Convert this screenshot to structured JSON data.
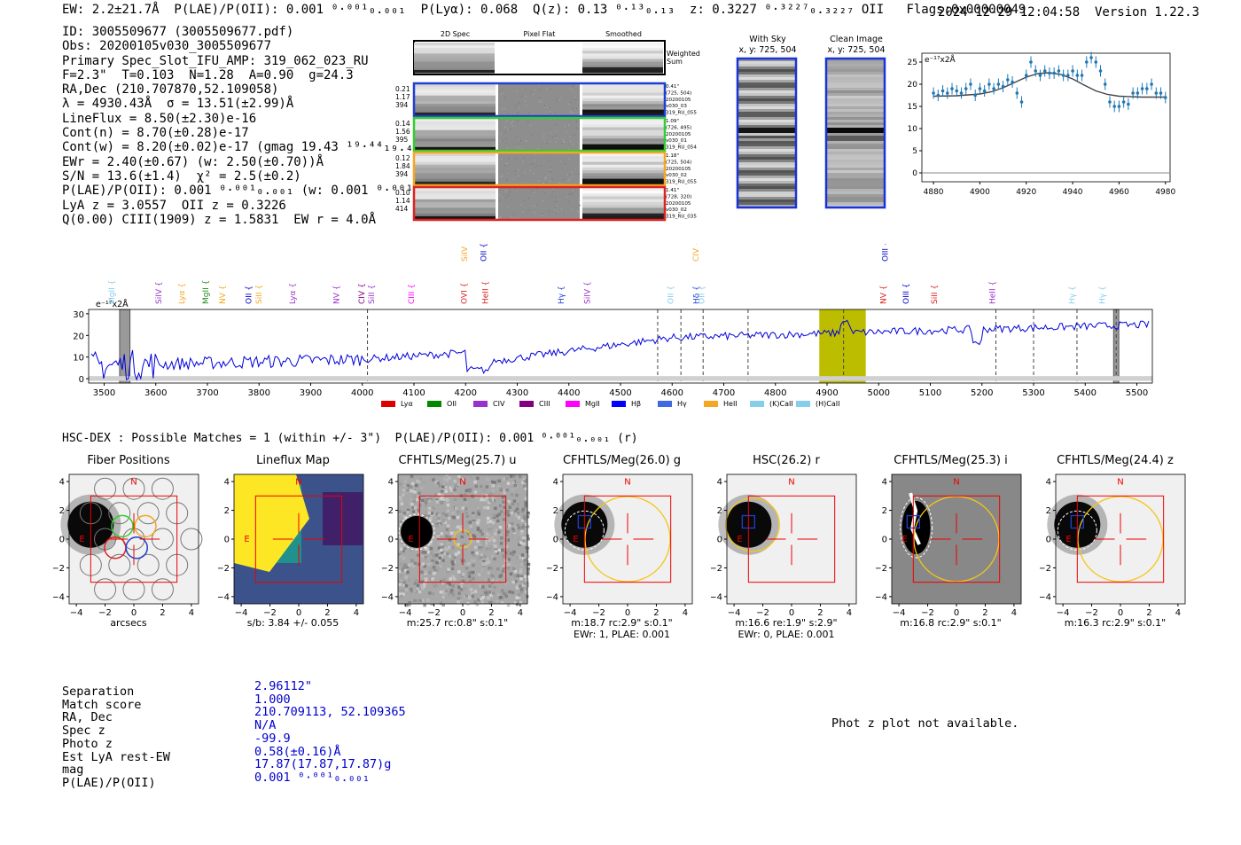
{
  "header": {
    "line": "EW: 2.2±21.7Å  P(LAE)/P(OII): 0.001 ⁰·⁰⁰¹₀.₀₀₁  P(Lyα): 0.068  Q(z): 0.13 ⁰·¹³₀.₁₃  z: 0.3227 ⁰·³²²⁷₀.₃₂₂₇ OII   Flags:0x00000049",
    "timestamp": "2024-12-29 12:04:58  Version 1.22.3"
  },
  "info_lines": [
    "ID: 3005509677 (3005509677.pdf)",
    "Obs: 20200105v030_3005509677",
    "Primary Spec_Slot_IFU_AMP: 319_062_023_RU",
    "F=2.3\"  T=0.103  N=1.28  A=0.90  g=24.3",
    "RA,Dec (210.707870,52.109058)",
    "λ = 4930.43Å  σ = 13.51(±2.99)Å",
    "LineFlux = 8.50(±2.30)e-16",
    "Cont(n) = 8.70(±0.28)e-17",
    "Cont(w) = 8.20(±0.02)e-17 (gmag 19.43 ¹⁹·⁴⁴₁₉.₄₃)",
    "EWr = 2.40(±0.67) (w: 2.50(±0.70))Å",
    "S/N = 13.6(±1.4)  χ² = 2.5(±0.2)",
    "P(LAE)/P(OII): 0.001 ⁰·⁰⁰¹₀.₀₀₁ (w: 0.001 ⁰·⁰⁰¹₀.₀₀₁)",
    "LyA z = 3.0557  OII z = 0.3226",
    "Q(0.00) CIII(1909) z = 1.5831  EW r = 4.0Å"
  ],
  "fiber_panel": {
    "col_titles": [
      "2D Spec",
      "Pixel Flat",
      "Smoothed"
    ],
    "weighted_label": "Weighted Sum",
    "rows": [
      {
        "left": [
          "0.21",
          "1.17",
          "394"
        ],
        "right": [
          "0.41\"",
          "(725, 504)",
          "20200105",
          "v030_03",
          "319_RU_055"
        ],
        "color": "#1f3fd0"
      },
      {
        "left": [
          "0.14",
          "1.56",
          "395"
        ],
        "right": [
          "1.09\"",
          "(726, 495)",
          "20200105",
          "v030_01",
          "319_RU_054"
        ],
        "color": "#33cc33"
      },
      {
        "left": [
          "0.12",
          "1.84",
          "394"
        ],
        "right": [
          "1.18\"",
          "(725, 504)",
          "20200105",
          "v030_02",
          "319_RU_055"
        ],
        "color": "#f5a623"
      },
      {
        "left": [
          "0.10",
          "1.14",
          "414"
        ],
        "right": [
          "1.41\"",
          "(728, 320)",
          "20200105",
          "v030_02",
          "319_RU_035"
        ],
        "color": "#dd2222"
      }
    ]
  },
  "sky_panels": [
    {
      "title": "With Sky",
      "coords": "x, y: 725, 504"
    },
    {
      "title": "Clean Image",
      "coords": "x, y: 725, 504"
    }
  ],
  "chart_data": [
    {
      "type": "line",
      "name": "zoom-spectrum",
      "ylabel_text": "e⁻¹⁷x2Å",
      "xlim": [
        4875,
        4982
      ],
      "ylim": [
        -2,
        27
      ],
      "xticks": [
        4880,
        4900,
        4920,
        4940,
        4960,
        4980
      ],
      "yticks": [
        0,
        5,
        10,
        15,
        20,
        25
      ],
      "x": [
        4880,
        4882,
        4884,
        4886,
        4888,
        4890,
        4892,
        4894,
        4896,
        4898,
        4900,
        4902,
        4904,
        4906,
        4908,
        4910,
        4912,
        4914,
        4916,
        4918,
        4920,
        4922,
        4924,
        4926,
        4928,
        4930,
        4932,
        4934,
        4936,
        4938,
        4940,
        4942,
        4944,
        4946,
        4948,
        4950,
        4952,
        4954,
        4956,
        4958,
        4960,
        4962,
        4964,
        4966,
        4968,
        4970,
        4972,
        4974,
        4976,
        4978,
        4980
      ],
      "y": [
        18,
        17.5,
        18.5,
        18,
        19,
        18.5,
        18,
        19,
        20,
        17.5,
        19,
        18.5,
        20,
        19,
        20,
        19.5,
        21,
        20.5,
        18,
        16,
        22,
        25,
        23,
        22,
        23,
        22.5,
        22.5,
        23,
        22,
        22,
        23,
        22,
        22,
        25,
        26,
        25,
        23,
        20,
        16,
        15,
        15,
        16,
        15.5,
        18,
        18,
        19,
        19,
        20,
        18,
        18,
        17
      ],
      "fit_x": [
        4880,
        4890,
        4900,
        4905,
        4910,
        4915,
        4920,
        4925,
        4930,
        4935,
        4940,
        4945,
        4950,
        4955,
        4960,
        4970,
        4980
      ],
      "fit_y": [
        17.3,
        17.4,
        17.8,
        18.3,
        19.2,
        20.4,
        21.6,
        22.4,
        22.6,
        22.2,
        21.2,
        19.8,
        18.5,
        17.7,
        17.3,
        17.1,
        17.1
      ]
    },
    {
      "type": "line",
      "name": "full-spectrum",
      "ylabel_text": "e⁻¹⁷x2Å",
      "xlim": [
        3470,
        5530
      ],
      "ylim": [
        -2,
        32
      ],
      "xticks": [
        3500,
        3600,
        3700,
        3800,
        3900,
        4000,
        4100,
        4200,
        4300,
        4400,
        4500,
        4600,
        4700,
        4800,
        4900,
        5000,
        5100,
        5200,
        5300,
        5400,
        5500
      ],
      "yticks": [
        0,
        10,
        20,
        30
      ],
      "highlight_band": [
        4885,
        4975
      ],
      "dashed_lines": [
        4010,
        4572,
        4617,
        4660,
        4747,
        4932,
        5227,
        5300,
        5384,
        5460
      ],
      "hatched_bands": [
        [
          3530,
          3550
        ],
        [
          5455,
          5465
        ]
      ],
      "line_labels": [
        {
          "text": "MgII",
          "x": 3520,
          "color": "#87ceeb",
          "tier": 0
        },
        {
          "text": "SiIV",
          "x": 3611,
          "color": "#9932cc",
          "tier": 0
        },
        {
          "text": "Lyα",
          "x": 3655,
          "color": "#f5a623",
          "tier": 0
        },
        {
          "text": "MgII",
          "x": 3702,
          "color": "#228b22",
          "tier": 0
        },
        {
          "text": "NV",
          "x": 3734,
          "color": "#f5a623",
          "tier": 0
        },
        {
          "text": "OII",
          "x": 3785,
          "color": "#0000cc",
          "tier": 0
        },
        {
          "text": "SiII",
          "x": 3805,
          "color": "#f5a623",
          "tier": 0
        },
        {
          "text": "Lyα",
          "x": 3870,
          "color": "#9932cc",
          "tier": 0
        },
        {
          "text": "NV",
          "x": 3955,
          "color": "#9932cc",
          "tier": 0
        },
        {
          "text": "CIV",
          "x": 4004,
          "color": "#800080",
          "tier": 0
        },
        {
          "text": "SiII",
          "x": 4023,
          "color": "#9932cc",
          "tier": 0
        },
        {
          "text": "CIII",
          "x": 4100,
          "color": "#ff00ff",
          "tier": 0
        },
        {
          "text": "OVI",
          "x": 4202,
          "color": "#dd2222",
          "tier": 0
        },
        {
          "text": "HeII",
          "x": 4243,
          "color": "#dd2222",
          "tier": 0
        },
        {
          "text": "SiIV",
          "x": 4203,
          "color": "#f5a623",
          "tier": 1
        },
        {
          "text": "OII",
          "x": 4240,
          "color": "#0000cc",
          "tier": 1
        },
        {
          "text": "Hγ",
          "x": 4390,
          "color": "#1f3fd0",
          "tier": 0
        },
        {
          "text": "SiIV",
          "x": 4441,
          "color": "#9932cc",
          "tier": 0
        },
        {
          "text": "OII",
          "x": 4602,
          "color": "#87ceeb",
          "tier": 0
        },
        {
          "text": "Hδ",
          "x": 4652,
          "color": "#1f3fd0",
          "tier": 0
        },
        {
          "text": "OII",
          "x": 4662,
          "color": "#87ceeb",
          "tier": 0
        },
        {
          "text": "CIV",
          "x": 4651,
          "color": "#f5a623",
          "tier": 1
        },
        {
          "text": "NV",
          "x": 5014,
          "color": "#dd2222",
          "tier": 0
        },
        {
          "text": "OIII",
          "x": 5058,
          "color": "#0000cc",
          "tier": 0
        },
        {
          "text": "SiII",
          "x": 5113,
          "color": "#dd2222",
          "tier": 0
        },
        {
          "text": "OIII",
          "x": 5018,
          "color": "#0000cc",
          "tier": 1
        },
        {
          "text": "HeII",
          "x": 5225,
          "color": "#9932cc",
          "tier": 0
        },
        {
          "text": "Hγ",
          "x": 5380,
          "color": "#87ceeb",
          "tier": 0
        },
        {
          "text": "Hγ",
          "x": 5438,
          "color": "#87ceeb",
          "tier": 0
        }
      ],
      "legend": [
        {
          "label": "Lyα",
          "color": "#dd0000"
        },
        {
          "label": "OII",
          "color": "#008800"
        },
        {
          "label": "CIV",
          "color": "#9932cc"
        },
        {
          "label": "CIII",
          "color": "#800080"
        },
        {
          "label": "MgII",
          "color": "#ff00ff"
        },
        {
          "label": "Hβ",
          "color": "#0000ff"
        },
        {
          "label": "Hγ",
          "color": "#4169e1"
        },
        {
          "label": "HeII",
          "color": "#f5a623"
        },
        {
          "label": "(K)CaII",
          "color": "#87ceeb"
        },
        {
          "label": "(H)CaII",
          "color": "#87ceeb"
        }
      ]
    }
  ],
  "cutouts_header": "HSC-DEX : Possible Matches = 1 (within +/- 3\")  P(LAE)/P(OII): 0.001 ⁰·⁰⁰¹₀.₀₀₁ (r)",
  "cutouts": [
    {
      "title": "Fiber Positions",
      "caption": "arcsecs",
      "caption2": "",
      "kind": "fibers"
    },
    {
      "title": "Lineflux Map",
      "caption": "s/b: 3.84 +/- 0.055",
      "caption2": "",
      "kind": "flux"
    },
    {
      "title": "CFHTLS/Meg(25.7) u",
      "caption": "m:25.7 rc:0.8\"  s:0.1\"",
      "caption2": "",
      "kind": "u"
    },
    {
      "title": "CFHTLS/Meg(26.0) g",
      "caption": "m:18.7 rc:2.9\"  s:0.1\"",
      "caption2": "EWr: 1, PLAE: 0.001",
      "kind": "g"
    },
    {
      "title": "HSC(26.2) r",
      "caption": "m:16.6  re:1.9\"  s:2.9\"",
      "caption2": "EWr: 0, PLAE: 0.001",
      "kind": "r"
    },
    {
      "title": "CFHTLS/Meg(25.3) i",
      "caption": "m:16.8 rc:2.9\"  s:0.1\"",
      "caption2": "",
      "kind": "i"
    },
    {
      "title": "CFHTLS/Meg(24.4) z",
      "caption": "m:16.3 rc:2.9\"  s:0.1\"",
      "caption2": "",
      "kind": "z"
    }
  ],
  "cutout_axis": {
    "ticks": [
      "−4",
      "−2",
      "0",
      "2",
      "4"
    ],
    "north": "N",
    "east": "E"
  },
  "match": {
    "labels": [
      "Separation",
      "Match score",
      "RA, Dec",
      "Spec z",
      "Photo z",
      "Est LyA rest-EW",
      "mag",
      "P(LAE)/P(OII)"
    ],
    "values": [
      "2.96112\"",
      "1.000",
      "210.709113, 52.109365",
      "N/A",
      "-99.9",
      "0.58(±0.16)Å",
      "17.87(17.87,17.87)g",
      "0.001 ⁰·⁰⁰¹₀.₀₀₁"
    ]
  },
  "photz_text": "Phot z plot not available."
}
